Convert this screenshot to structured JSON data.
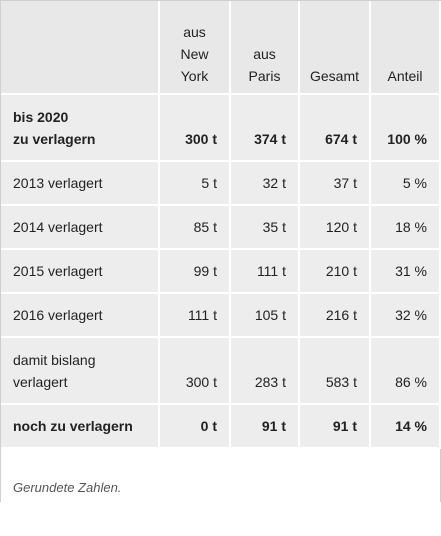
{
  "table": {
    "headers": {
      "label": "",
      "new_york": "aus\nNew\nYork",
      "paris": "aus\nParis",
      "gesamt": "Gesamt",
      "anteil": "Anteil"
    },
    "rows": [
      {
        "label": "bis 2020\nzu verlagern",
        "new_york": "300 t",
        "paris": "374 t",
        "gesamt": "674 t",
        "anteil": "100 %"
      },
      {
        "label": "2013 verlagert",
        "new_york": "5 t",
        "paris": "32 t",
        "gesamt": "37 t",
        "anteil": "5 %"
      },
      {
        "label": "2014 verlagert",
        "new_york": "85 t",
        "paris": "35 t",
        "gesamt": "120 t",
        "anteil": "18 %"
      },
      {
        "label": "2015 verlagert",
        "new_york": "99 t",
        "paris": "111 t",
        "gesamt": "210 t",
        "anteil": "31 %"
      },
      {
        "label": "2016 verlagert",
        "new_york": "111 t",
        "paris": "105 t",
        "gesamt": "216 t",
        "anteil": "32 %"
      },
      {
        "label": "damit bislang\nverlagert",
        "new_york": "300 t",
        "paris": "283 t",
        "gesamt": "583 t",
        "anteil": "86 %"
      },
      {
        "label": "noch zu verlagern",
        "new_york": "0 t",
        "paris": "91 t",
        "gesamt": "91 t",
        "anteil": "14 %"
      }
    ]
  },
  "footnote": "Gerundete Zahlen."
}
